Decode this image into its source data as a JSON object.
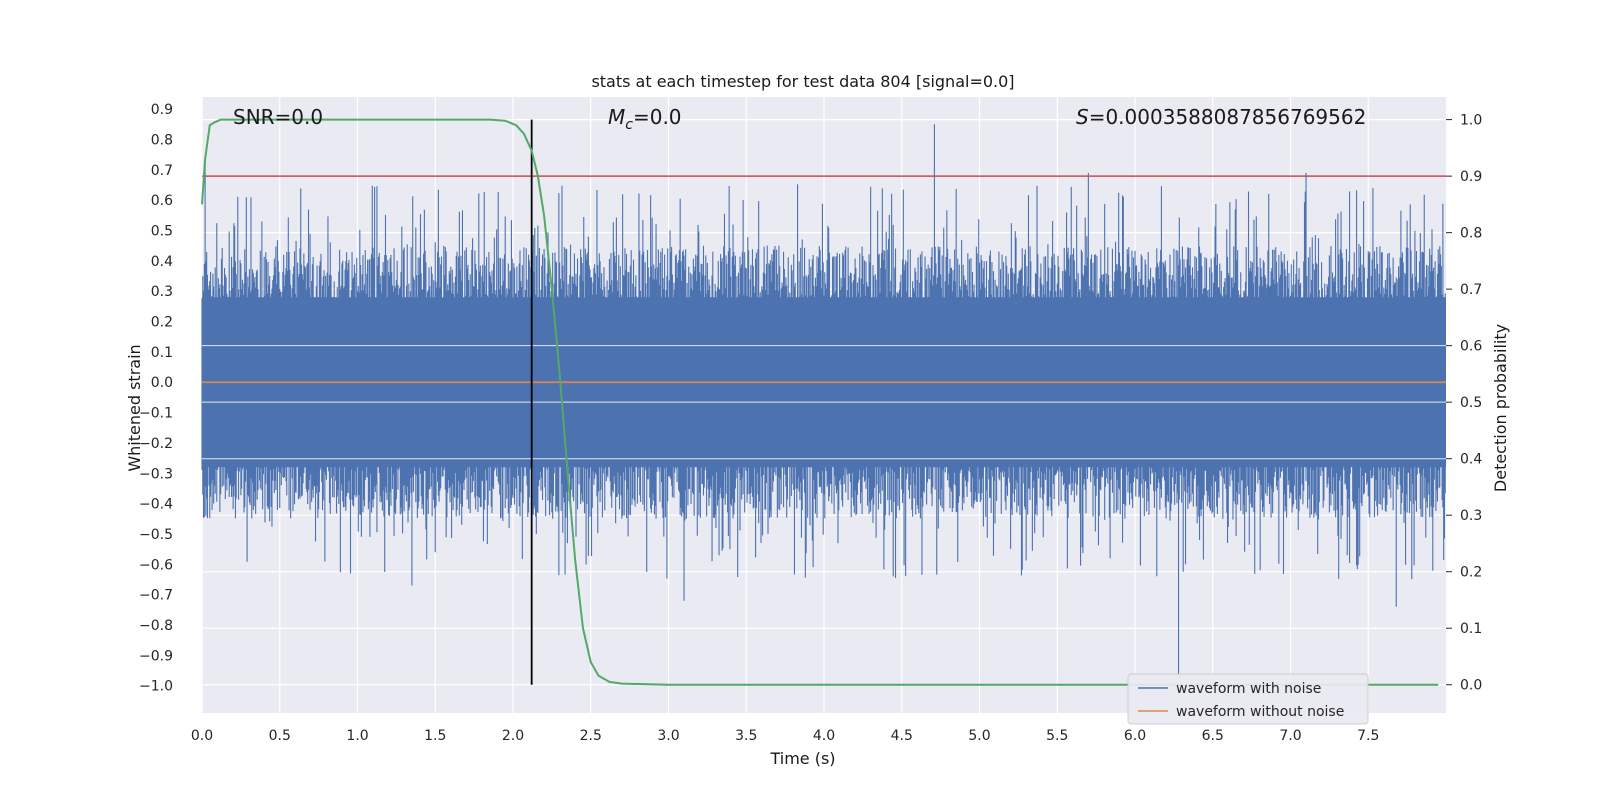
{
  "chart_data": {
    "type": "line",
    "title": "stats at each timestep for test data 804 [signal=0.0]",
    "xlabel": "Time (s)",
    "ylabel": "Whitened strain",
    "y2label": "Detection probability",
    "xlim": [
      0.0,
      8.0
    ],
    "ylim": [
      -1.09,
      0.94
    ],
    "y2lim": [
      -0.05,
      1.04
    ],
    "grid": true,
    "xticks": [
      "0.0",
      "0.5",
      "1.0",
      "1.5",
      "2.0",
      "2.5",
      "3.0",
      "3.5",
      "4.0",
      "4.5",
      "5.0",
      "5.5",
      "6.0",
      "6.5",
      "7.0",
      "7.5"
    ],
    "yticks": [
      "0.9",
      "0.8",
      "0.7",
      "0.6",
      "0.5",
      "0.4",
      "0.3",
      "0.2",
      "0.1",
      "0.0",
      "-0.1",
      "-0.2",
      "-0.3",
      "-0.4",
      "-0.5",
      "-0.6",
      "-0.7",
      "-0.8",
      "-0.9",
      "-1.0"
    ],
    "y2ticks": [
      "1.0",
      "0.9",
      "0.8",
      "0.7",
      "0.6",
      "0.5",
      "0.4",
      "0.3",
      "0.2",
      "0.1",
      "0.0"
    ],
    "annotations": {
      "snr": "SNR=0.0",
      "mc_symbol": "M",
      "mc_sub": "c",
      "mc_value": "=0.0",
      "s_symbol": "S",
      "s_value": "=0.0003588087856769562"
    },
    "threshold_probability": 0.9,
    "marker_time": 2.12,
    "colors": {
      "noise": "#4c72b0",
      "clean": "#dd8452",
      "probability": "#55a868",
      "threshold": "#c44e52",
      "marker": "#000000",
      "background": "#eaeaf2",
      "grid": "#ffffff"
    },
    "series": [
      {
        "name": "waveform with noise",
        "kind": "noise",
        "duration": 8.0,
        "samples": 1600,
        "approx_envelope_upper": 0.45,
        "approx_envelope_lower": -0.45,
        "notable_spikes": [
          [
            0.02,
            0.74
          ],
          [
            4.71,
            0.85
          ],
          [
            6.28,
            -0.97
          ],
          [
            3.1,
            -0.72
          ],
          [
            7.68,
            -0.74
          ],
          [
            1.35,
            -0.67
          ],
          [
            7.1,
            0.69
          ],
          [
            5.7,
            0.69
          ]
        ]
      },
      {
        "name": "waveform without noise",
        "kind": "clean",
        "x": [
          0.0,
          8.0
        ],
        "y": [
          0.0,
          0.0
        ]
      },
      {
        "name": "Detection probability",
        "kind": "probability",
        "axis": "right",
        "x": [
          0.0,
          0.02,
          0.05,
          0.08,
          0.12,
          0.2,
          0.5,
          1.0,
          1.5,
          1.85,
          1.95,
          2.02,
          2.07,
          2.12,
          2.16,
          2.2,
          2.25,
          2.3,
          2.35,
          2.4,
          2.45,
          2.5,
          2.55,
          2.62,
          2.7,
          3.0,
          4.0,
          5.0,
          6.0,
          7.0,
          7.95
        ],
        "y": [
          0.85,
          0.93,
          0.99,
          0.995,
          1.0,
          1.0,
          1.0,
          1.0,
          1.0,
          1.0,
          0.998,
          0.99,
          0.975,
          0.945,
          0.9,
          0.83,
          0.7,
          0.55,
          0.38,
          0.22,
          0.1,
          0.04,
          0.016,
          0.005,
          0.002,
          0.0,
          0.0,
          0.0,
          0.0,
          0.0,
          0.0
        ]
      }
    ],
    "legend": {
      "position": "lower-right",
      "entries": [
        "waveform with noise",
        "waveform without noise"
      ]
    }
  }
}
